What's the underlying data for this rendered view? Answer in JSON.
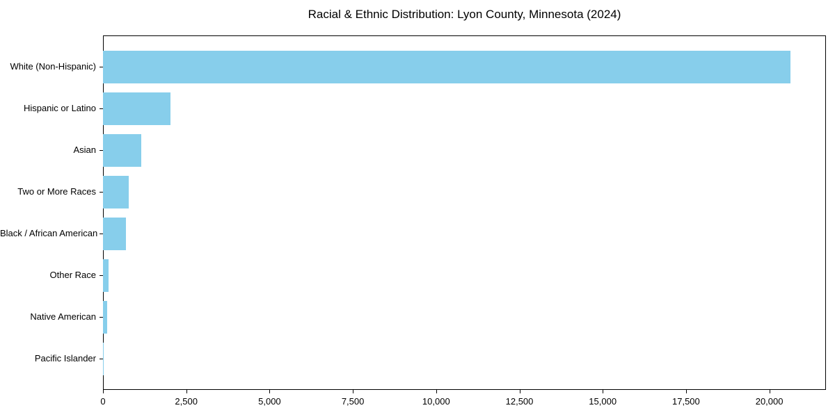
{
  "chart_data": {
    "type": "bar",
    "orientation": "horizontal",
    "title": "Racial & Ethnic Distribution: Lyon County, Minnesota (2024)",
    "categories": [
      "White (Non-Hispanic)",
      "Hispanic or Latino",
      "Asian",
      "Two or More Races",
      "Black / African American",
      "Other Race",
      "Native American",
      "Pacific Islander"
    ],
    "values": [
      20640,
      2020,
      1140,
      780,
      680,
      170,
      125,
      10
    ],
    "xlabel": "",
    "ylabel": "",
    "xlim": [
      0,
      21700
    ],
    "x_ticks": [
      0,
      2500,
      5000,
      7500,
      10000,
      12500,
      15000,
      17500,
      20000
    ],
    "x_tick_labels": [
      "0",
      "2,500",
      "5,000",
      "7,500",
      "10,000",
      "12,500",
      "15,000",
      "17,500",
      "20,000"
    ],
    "grid": false,
    "legend": "none",
    "bar_color": "#87CEEB",
    "axis_color": "#000000",
    "text_color": "#000000"
  }
}
